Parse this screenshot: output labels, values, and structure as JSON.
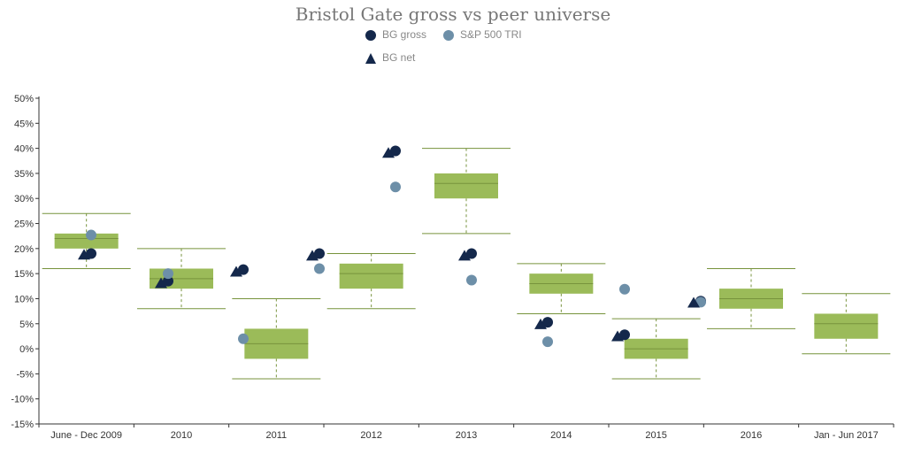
{
  "colors": {
    "box_fill": "#9bbb59",
    "whisker": "#77933c",
    "bg_gross": "#14284b",
    "sp500": "#6d8fa8",
    "bg_net": "#14284b",
    "axis": "#333333"
  },
  "chart_data": {
    "type": "box",
    "title": "Bristol Gate gross vs peer universe",
    "xlabel": "",
    "ylabel": "",
    "ylim": [
      -15,
      50
    ],
    "ytick_step": 5,
    "ytick_format": "percent",
    "grid": false,
    "legend_position": "top-center",
    "categories": [
      "June - Dec 2009",
      "2010",
      "2011",
      "2012",
      "2013",
      "2014",
      "2015",
      "2016",
      "Jan - Jun 2017"
    ],
    "peer_universe_boxes": [
      {
        "min": 16,
        "q1": 20,
        "median": 22,
        "q3": 23,
        "max": 27
      },
      {
        "min": 8,
        "q1": 12,
        "median": 14,
        "q3": 16,
        "max": 20
      },
      {
        "min": -6,
        "q1": -2,
        "median": 1,
        "q3": 4,
        "max": 10
      },
      {
        "min": 8,
        "q1": 12,
        "median": 15,
        "q3": 17,
        "max": 19
      },
      {
        "min": 23,
        "q1": 30,
        "median": 33,
        "q3": 35,
        "max": 40
      },
      {
        "min": 7,
        "q1": 11,
        "median": 13,
        "q3": 15,
        "max": 17
      },
      {
        "min": -6,
        "q1": -2,
        "median": 0,
        "q3": 2,
        "max": 6
      },
      {
        "min": 4,
        "q1": 8,
        "median": 10,
        "q3": 12,
        "max": 16
      },
      {
        "min": -1,
        "q1": 2,
        "median": 5,
        "q3": 7,
        "max": 11
      }
    ],
    "series": [
      {
        "name": "BG gross",
        "marker": "circle",
        "values": [
          19,
          13.5,
          15.8,
          19,
          39.5,
          19,
          5.3,
          2.8,
          9.5
        ]
      },
      {
        "name": "S&P 500 TRI",
        "marker": "circle",
        "values": [
          22.7,
          15,
          2,
          16,
          32.3,
          13.7,
          1.4,
          11.9,
          9.3
        ]
      },
      {
        "name": "BG net",
        "marker": "triangle",
        "values": [
          18.7,
          13,
          15.3,
          18.5,
          39,
          18.5,
          4.8,
          2.4,
          9.1
        ]
      }
    ]
  }
}
